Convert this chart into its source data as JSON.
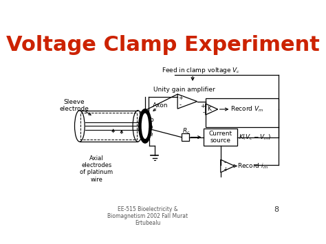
{
  "title": "Voltage Clamp Experiment",
  "title_color": "#CC2200",
  "title_fontsize": 22,
  "bg_color": "#FFFFFF",
  "footer_text": "EE-515 Bioelectricity &\nBiomagnetism 2002 Fall Murat\nErtubealu",
  "page_number": "8",
  "diagram_color": "#000000"
}
